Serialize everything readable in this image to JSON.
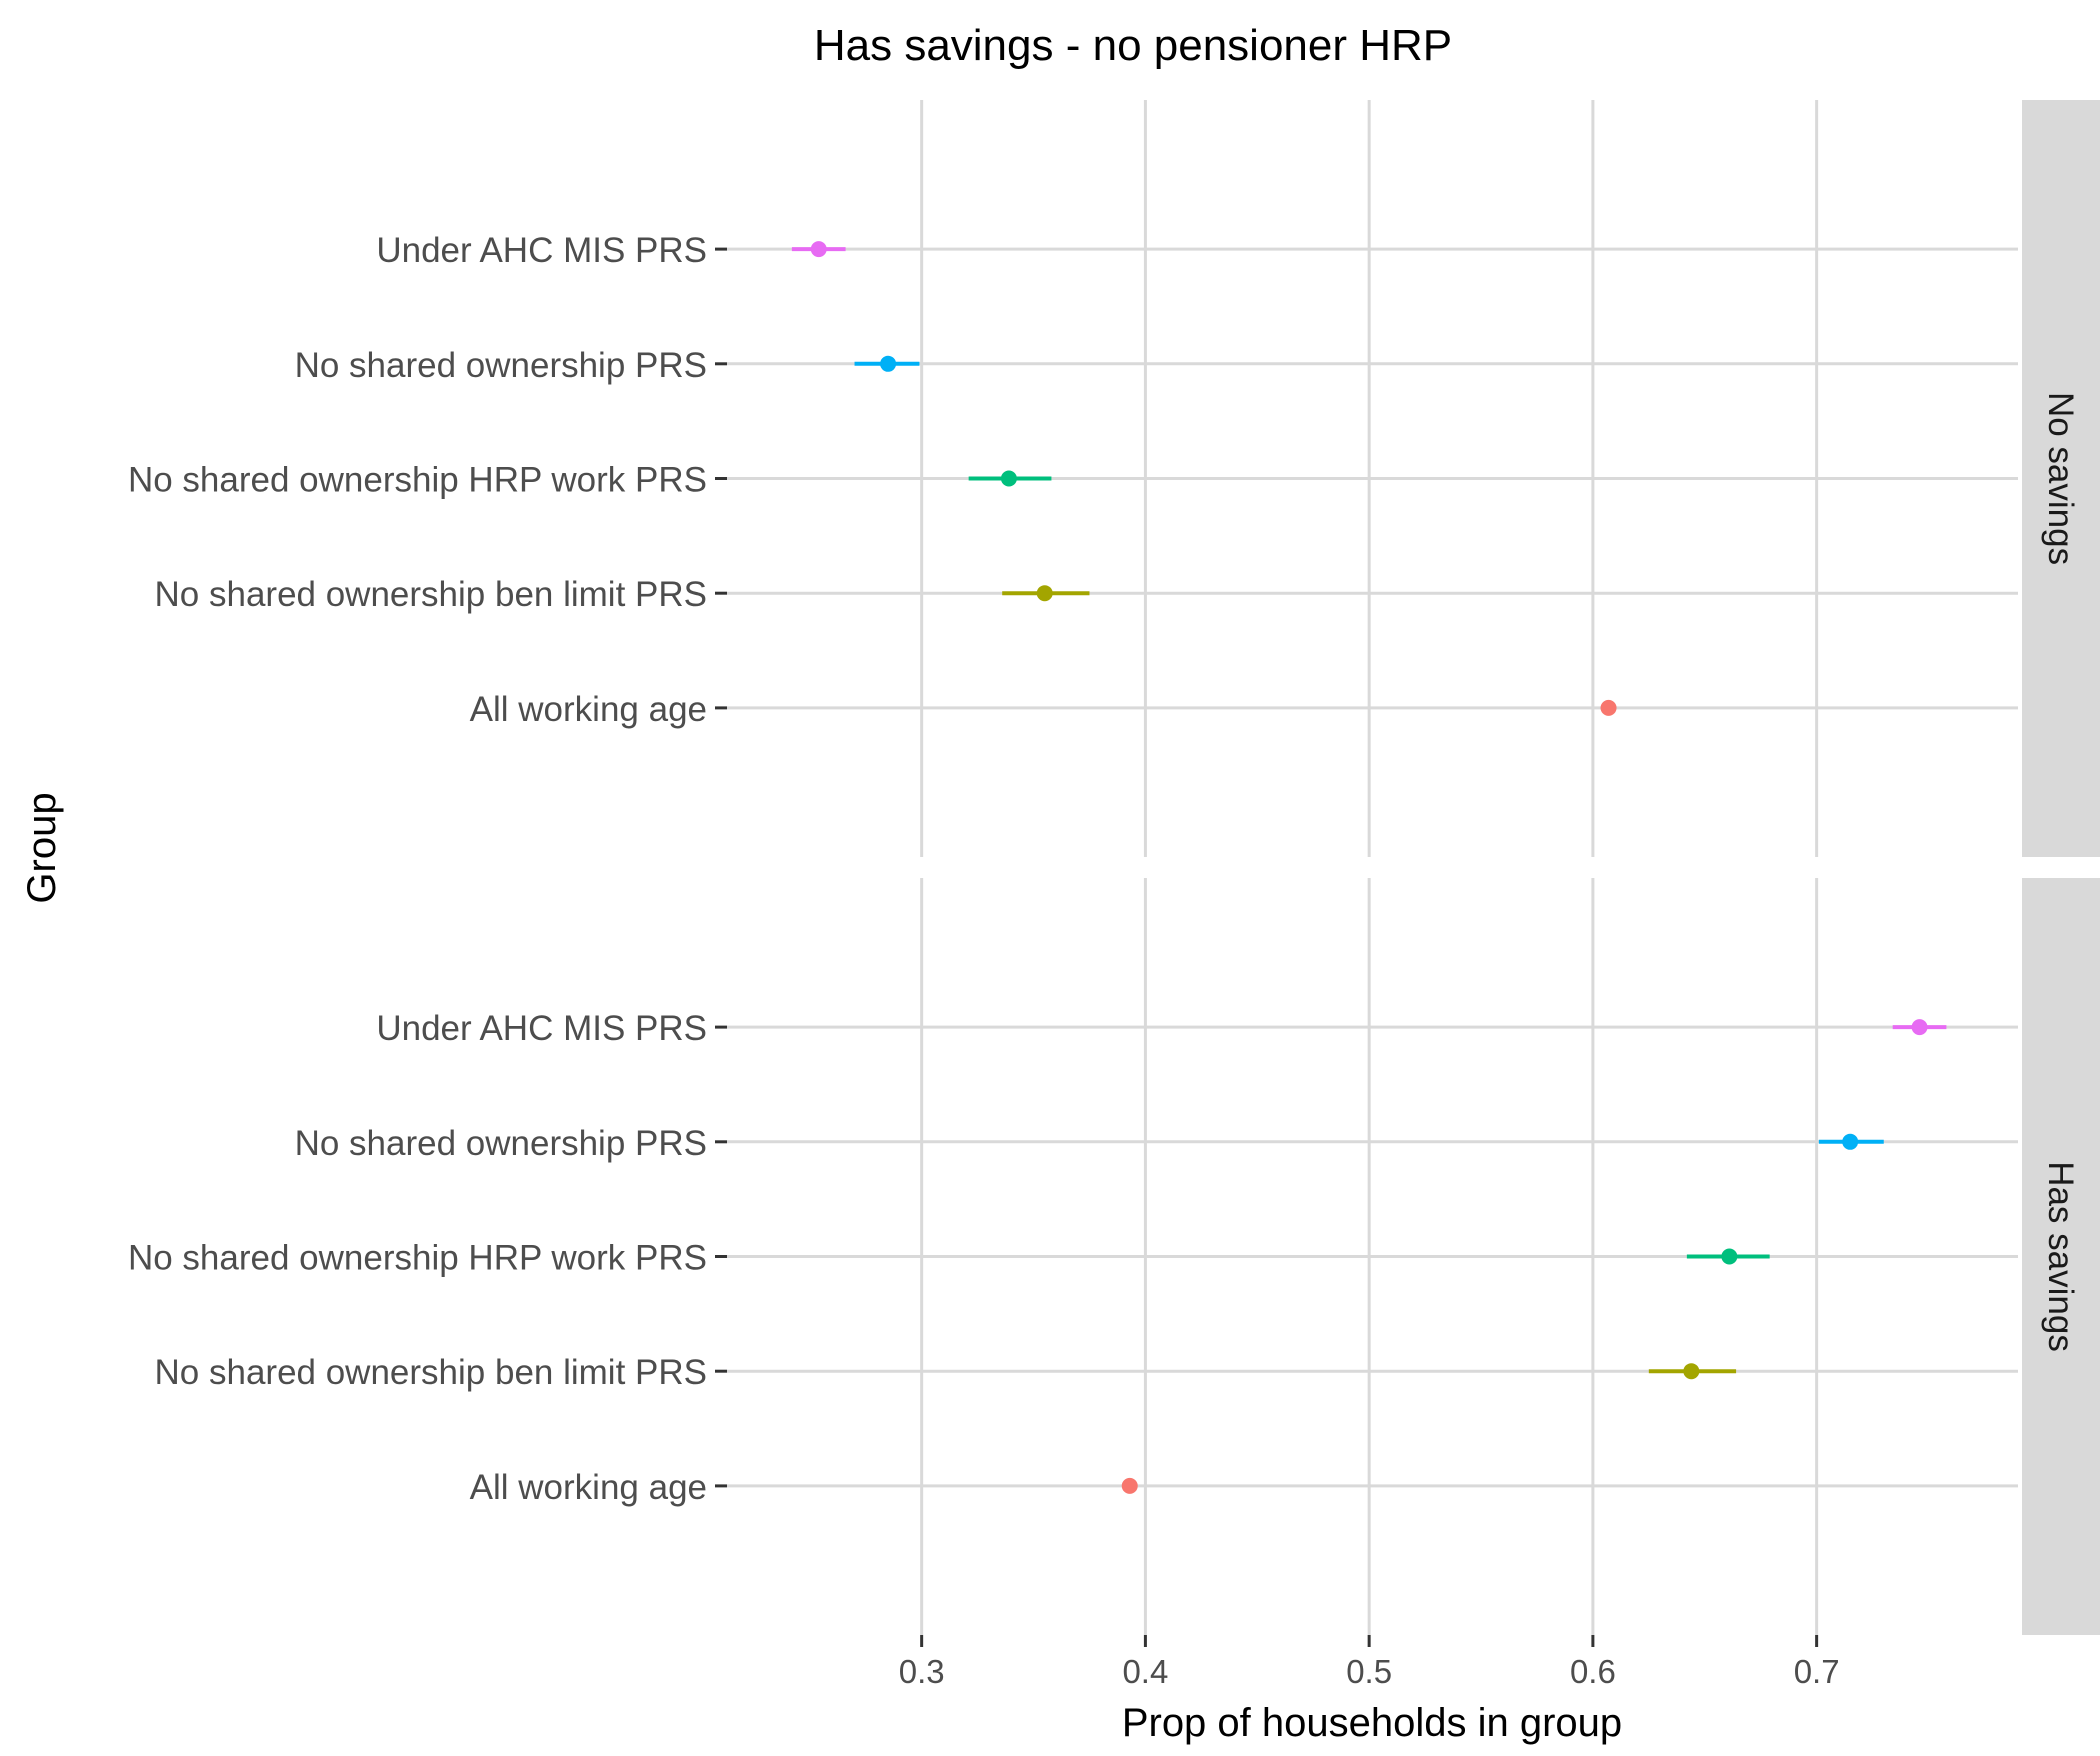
{
  "chart_data": {
    "type": "scatter",
    "title": "Has savings - no pensioner HRP",
    "xlabel": "Prop of households in group",
    "ylabel": "Group",
    "xlim": [
      0.213,
      0.79
    ],
    "x_ticks": [
      "0.3",
      "0.4",
      "0.5",
      "0.6",
      "0.7"
    ],
    "x_tick_values": [
      0.3,
      0.4,
      0.5,
      0.6,
      0.7
    ],
    "categories": [
      "Under AHC MIS PRS",
      "No shared ownership PRS",
      "No shared ownership HRP work PRS",
      "No shared ownership ben limit PRS",
      "All working age"
    ],
    "grid": true,
    "facets": [
      {
        "label": "No savings",
        "points": [
          {
            "group": "Under AHC MIS PRS",
            "x": 0.254,
            "lo": 0.242,
            "hi": 0.266
          },
          {
            "group": "No shared ownership PRS",
            "x": 0.285,
            "lo": 0.27,
            "hi": 0.299
          },
          {
            "group": "No shared ownership HRP work PRS",
            "x": 0.339,
            "lo": 0.321,
            "hi": 0.358
          },
          {
            "group": "No shared ownership ben limit PRS",
            "x": 0.355,
            "lo": 0.336,
            "hi": 0.375
          },
          {
            "group": "All working age",
            "x": 0.607,
            "lo": 0.605,
            "hi": 0.609
          }
        ]
      },
      {
        "label": "Has savings",
        "points": [
          {
            "group": "Under AHC MIS PRS",
            "x": 0.746,
            "lo": 0.734,
            "hi": 0.758
          },
          {
            "group": "No shared ownership PRS",
            "x": 0.715,
            "lo": 0.701,
            "hi": 0.73
          },
          {
            "group": "No shared ownership HRP work PRS",
            "x": 0.661,
            "lo": 0.642,
            "hi": 0.679
          },
          {
            "group": "No shared ownership ben limit PRS",
            "x": 0.644,
            "lo": 0.625,
            "hi": 0.664
          },
          {
            "group": "All working age",
            "x": 0.393,
            "lo": 0.391,
            "hi": 0.395
          }
        ]
      }
    ],
    "colors": {
      "Under AHC MIS PRS": "#E76BF3",
      "No shared ownership PRS": "#00B0F6",
      "No shared ownership HRP work PRS": "#00BF7D",
      "No shared ownership ben limit PRS": "#A3A500",
      "All working age": "#F8766D"
    }
  }
}
